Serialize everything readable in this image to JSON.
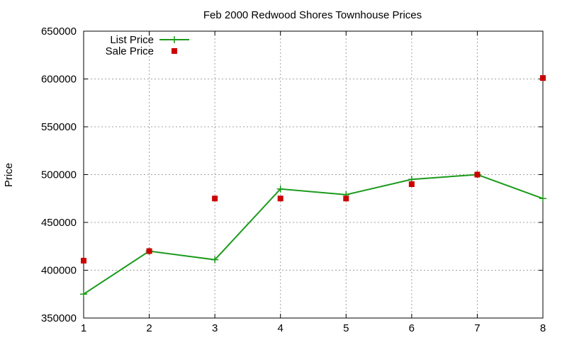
{
  "chart_data": {
    "type": "line",
    "title": "Feb 2000 Redwood Shores Townhouse Prices",
    "xlabel": "",
    "ylabel": "Price",
    "xlim": [
      1,
      8
    ],
    "ylim": [
      350000,
      650000
    ],
    "x_ticks": [
      1,
      2,
      3,
      4,
      5,
      6,
      7,
      8
    ],
    "y_ticks": [
      350000,
      400000,
      450000,
      500000,
      550000,
      600000,
      650000
    ],
    "grid": true,
    "legend_position": "top-left",
    "series": [
      {
        "name": "List Price",
        "style": "linespoints",
        "marker": "plus",
        "color": "#1a9a1a",
        "x": [
          1,
          2,
          3,
          4,
          5,
          6,
          7,
          8
        ],
        "values": [
          375000,
          420000,
          411000,
          485000,
          479000,
          495000,
          500000,
          475000
        ]
      },
      {
        "name": "Sale Price",
        "style": "points",
        "marker": "square",
        "color": "#cc0000",
        "x": [
          1,
          2,
          3,
          4,
          5,
          6,
          7,
          8
        ],
        "values": [
          410000,
          420000,
          475000,
          475000,
          475000,
          490000,
          500000,
          601000
        ]
      }
    ]
  }
}
